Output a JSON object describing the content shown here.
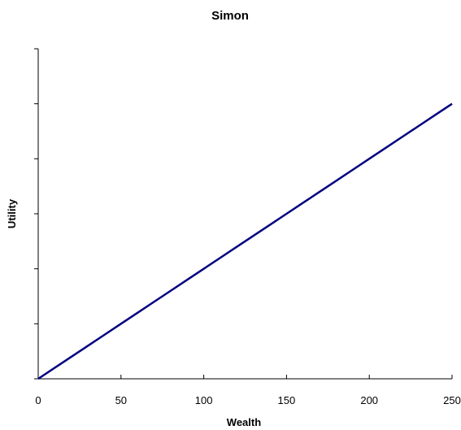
{
  "chart_data": {
    "type": "line",
    "title": "Simon",
    "xlabel": "Wealth",
    "ylabel": "Utility",
    "xlim": [
      0,
      250
    ],
    "x_ticks": [
      0,
      50,
      100,
      150,
      200,
      250
    ],
    "x_tick_labels": [
      "0",
      "50",
      "100",
      "150",
      "200",
      "250"
    ],
    "ylim": [
      0,
      6
    ],
    "y_ticks": [
      0,
      1,
      2,
      3,
      4,
      5,
      6
    ],
    "y_tick_labels_shown": false,
    "grid": false,
    "legend": "none",
    "series": [
      {
        "color": "#000080",
        "x": [
          0,
          10,
          20,
          30,
          40,
          50,
          60,
          70,
          80,
          90,
          100,
          110,
          120,
          130,
          140,
          150,
          160,
          170,
          180,
          190,
          200,
          210,
          220,
          230,
          240,
          250
        ],
        "y": [
          0,
          0.2,
          0.4,
          0.6,
          0.8,
          1.0,
          1.2,
          1.4,
          1.6,
          1.8,
          2.0,
          2.2,
          2.4,
          2.6,
          2.8,
          3.0,
          3.2,
          3.4,
          3.6,
          3.8,
          4.0,
          4.2,
          4.4,
          4.6,
          4.8,
          5.0
        ]
      }
    ]
  }
}
